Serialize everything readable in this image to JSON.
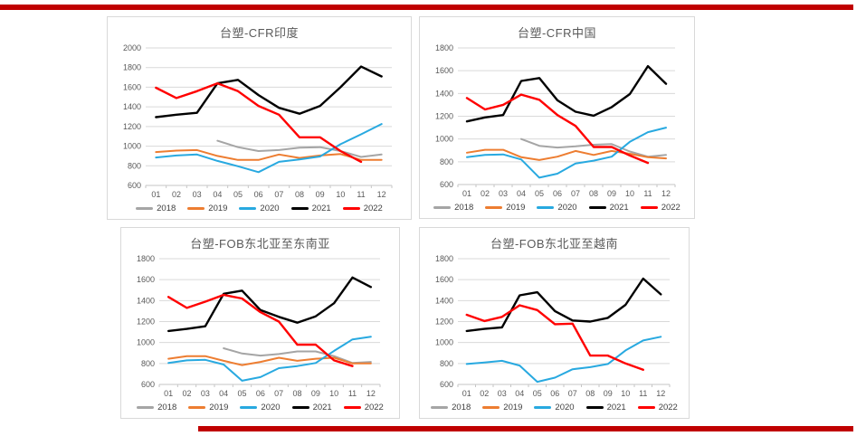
{
  "page": {
    "background": "#FFFFFF",
    "accent_bar_color": "#C00000"
  },
  "chart_data": [
    {
      "type": "line",
      "title": "台塑-CFR印度",
      "categories": [
        "01",
        "02",
        "03",
        "04",
        "05",
        "06",
        "07",
        "08",
        "09",
        "10",
        "11",
        "12"
      ],
      "ylim": [
        600,
        2000
      ],
      "ytick_step": 200,
      "grid": true,
      "legend_position": "bottom",
      "series": [
        {
          "name": "2018",
          "color": "#A5A5A5",
          "values": [
            null,
            null,
            null,
            1055,
            990,
            950,
            960,
            985,
            990,
            950,
            890,
            915
          ]
        },
        {
          "name": "2019",
          "color": "#ED7D31",
          "values": [
            940,
            955,
            960,
            900,
            860,
            860,
            915,
            880,
            905,
            920,
            860,
            860
          ]
        },
        {
          "name": "2020",
          "color": "#28A9E0",
          "values": [
            885,
            905,
            915,
            850,
            795,
            735,
            840,
            865,
            895,
            1020,
            1120,
            1225
          ]
        },
        {
          "name": "2021",
          "color": "#000000",
          "values": [
            1295,
            1320,
            1340,
            1640,
            1675,
            1520,
            1390,
            1330,
            1410,
            1600,
            1810,
            1710
          ]
        },
        {
          "name": "2022",
          "color": "#FF0000",
          "values": [
            1595,
            1490,
            1560,
            1640,
            1560,
            1410,
            1320,
            1090,
            1090,
            950,
            840,
            null
          ]
        }
      ]
    },
    {
      "type": "line",
      "title": "台塑-CFR中国",
      "categories": [
        "01",
        "02",
        "03",
        "04",
        "05",
        "06",
        "07",
        "08",
        "09",
        "10",
        "11",
        "12"
      ],
      "ylim": [
        600,
        1800
      ],
      "ytick_step": 200,
      "grid": true,
      "legend_position": "bottom",
      "series": [
        {
          "name": "2018",
          "color": "#A5A5A5",
          "values": [
            null,
            null,
            null,
            1000,
            940,
            925,
            935,
            950,
            955,
            890,
            845,
            860
          ]
        },
        {
          "name": "2019",
          "color": "#ED7D31",
          "values": [
            880,
            905,
            905,
            840,
            815,
            845,
            895,
            860,
            895,
            870,
            840,
            830
          ]
        },
        {
          "name": "2020",
          "color": "#28A9E0",
          "values": [
            840,
            860,
            865,
            820,
            660,
            695,
            785,
            810,
            845,
            975,
            1060,
            1100
          ]
        },
        {
          "name": "2021",
          "color": "#000000",
          "values": [
            1155,
            1190,
            1210,
            1510,
            1535,
            1340,
            1240,
            1205,
            1280,
            1395,
            1640,
            1485
          ]
        },
        {
          "name": "2022",
          "color": "#FF0000",
          "values": [
            1360,
            1260,
            1300,
            1390,
            1345,
            1210,
            1115,
            930,
            930,
            855,
            790,
            null
          ]
        }
      ]
    },
    {
      "type": "line",
      "title": "台塑-FOB东北亚至东南亚",
      "categories": [
        "01",
        "02",
        "03",
        "04",
        "05",
        "06",
        "07",
        "08",
        "09",
        "10",
        "11",
        "12"
      ],
      "ylim": [
        600,
        1800
      ],
      "ytick_step": 200,
      "grid": true,
      "legend_position": "bottom",
      "series": [
        {
          "name": "2018",
          "color": "#A5A5A5",
          "values": [
            null,
            null,
            null,
            945,
            895,
            875,
            890,
            915,
            915,
            870,
            805,
            815
          ]
        },
        {
          "name": "2019",
          "color": "#ED7D31",
          "values": [
            845,
            870,
            870,
            825,
            785,
            815,
            855,
            825,
            845,
            855,
            800,
            800
          ]
        },
        {
          "name": "2020",
          "color": "#28A9E0",
          "values": [
            805,
            830,
            835,
            790,
            635,
            670,
            755,
            775,
            805,
            920,
            1030,
            1055
          ]
        },
        {
          "name": "2021",
          "color": "#000000",
          "values": [
            1110,
            1130,
            1155,
            1465,
            1495,
            1310,
            1245,
            1190,
            1250,
            1375,
            1620,
            1530
          ]
        },
        {
          "name": "2022",
          "color": "#FF0000",
          "values": [
            1435,
            1330,
            1390,
            1455,
            1420,
            1290,
            1200,
            980,
            980,
            830,
            775,
            null
          ]
        }
      ]
    },
    {
      "type": "line",
      "title": "台塑-FOB东北亚至越南",
      "categories": [
        "01",
        "02",
        "03",
        "04",
        "05",
        "06",
        "07",
        "08",
        "09",
        "10",
        "11",
        "12"
      ],
      "ylim": [
        600,
        1800
      ],
      "ytick_step": 200,
      "grid": true,
      "legend_position": "bottom",
      "series": [
        {
          "name": "2018",
          "color": "#A5A5A5",
          "values": [
            null,
            null,
            null,
            null,
            null,
            null,
            null,
            null,
            null,
            null,
            null,
            null
          ]
        },
        {
          "name": "2019",
          "color": "#ED7D31",
          "values": [
            null,
            null,
            null,
            null,
            null,
            null,
            null,
            null,
            null,
            null,
            null,
            null
          ]
        },
        {
          "name": "2020",
          "color": "#28A9E0",
          "values": [
            795,
            810,
            825,
            780,
            625,
            665,
            745,
            765,
            795,
            925,
            1020,
            1055
          ]
        },
        {
          "name": "2021",
          "color": "#000000",
          "values": [
            1110,
            1130,
            1145,
            1450,
            1480,
            1300,
            1210,
            1200,
            1235,
            1360,
            1610,
            1460
          ]
        },
        {
          "name": "2022",
          "color": "#FF0000",
          "values": [
            1265,
            1205,
            1245,
            1355,
            1310,
            1175,
            1180,
            875,
            875,
            800,
            740,
            null
          ]
        }
      ]
    }
  ]
}
